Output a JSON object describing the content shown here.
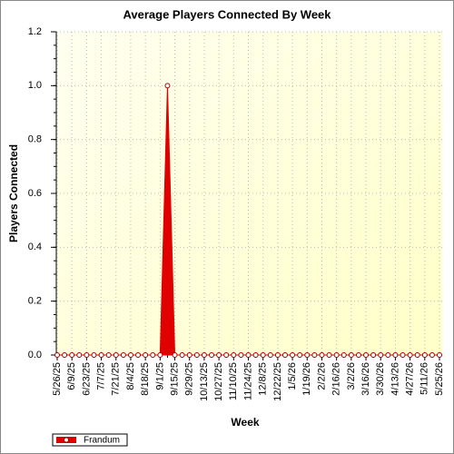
{
  "chart_data": {
    "type": "area",
    "title": "Average Players Connected By Week",
    "x_label": "Week",
    "y_label": "Players Connected",
    "categories": [
      "5/26/25",
      null,
      "6/9/25",
      null,
      "6/23/25",
      null,
      "7/7/25",
      null,
      "7/21/25",
      null,
      "8/4/25",
      null,
      "8/18/25",
      null,
      "9/1/25",
      null,
      "9/15/25",
      null,
      "9/29/25",
      null,
      "10/13/25",
      null,
      "10/27/25",
      null,
      "11/10/25",
      null,
      "11/24/25",
      null,
      "12/8/25",
      null,
      "12/22/25",
      null,
      "1/5/26",
      null,
      "1/19/26",
      null,
      "2/2/26",
      null,
      "2/16/26",
      null,
      "3/2/26",
      null,
      "3/16/26",
      null,
      "3/30/26",
      null,
      "4/13/26",
      null,
      "4/27/26",
      null,
      "5/11/26",
      null,
      "5/25/26"
    ],
    "series": [
      {
        "name": "Frandum",
        "color": "#e00000",
        "values": [
          0,
          0,
          0,
          0,
          0,
          0,
          0,
          0,
          0,
          0,
          0,
          0,
          0,
          0,
          0,
          1,
          0,
          0,
          0,
          0,
          0,
          0,
          0,
          0,
          0,
          0,
          0,
          0,
          0,
          0,
          0,
          0,
          0,
          0,
          0,
          0,
          0,
          0,
          0,
          0,
          0,
          0,
          0,
          0,
          0,
          0,
          0,
          0,
          0,
          0,
          0,
          0,
          0
        ]
      }
    ],
    "ylim": [
      0,
      1.2
    ],
    "yticks": [
      {
        "value": 0,
        "label": "0.0"
      },
      0.2,
      0.4,
      0.6,
      0.8,
      {
        "value": 1,
        "label": "1.0"
      },
      1.2
    ],
    "grid": true,
    "legend": "bottom-left"
  }
}
